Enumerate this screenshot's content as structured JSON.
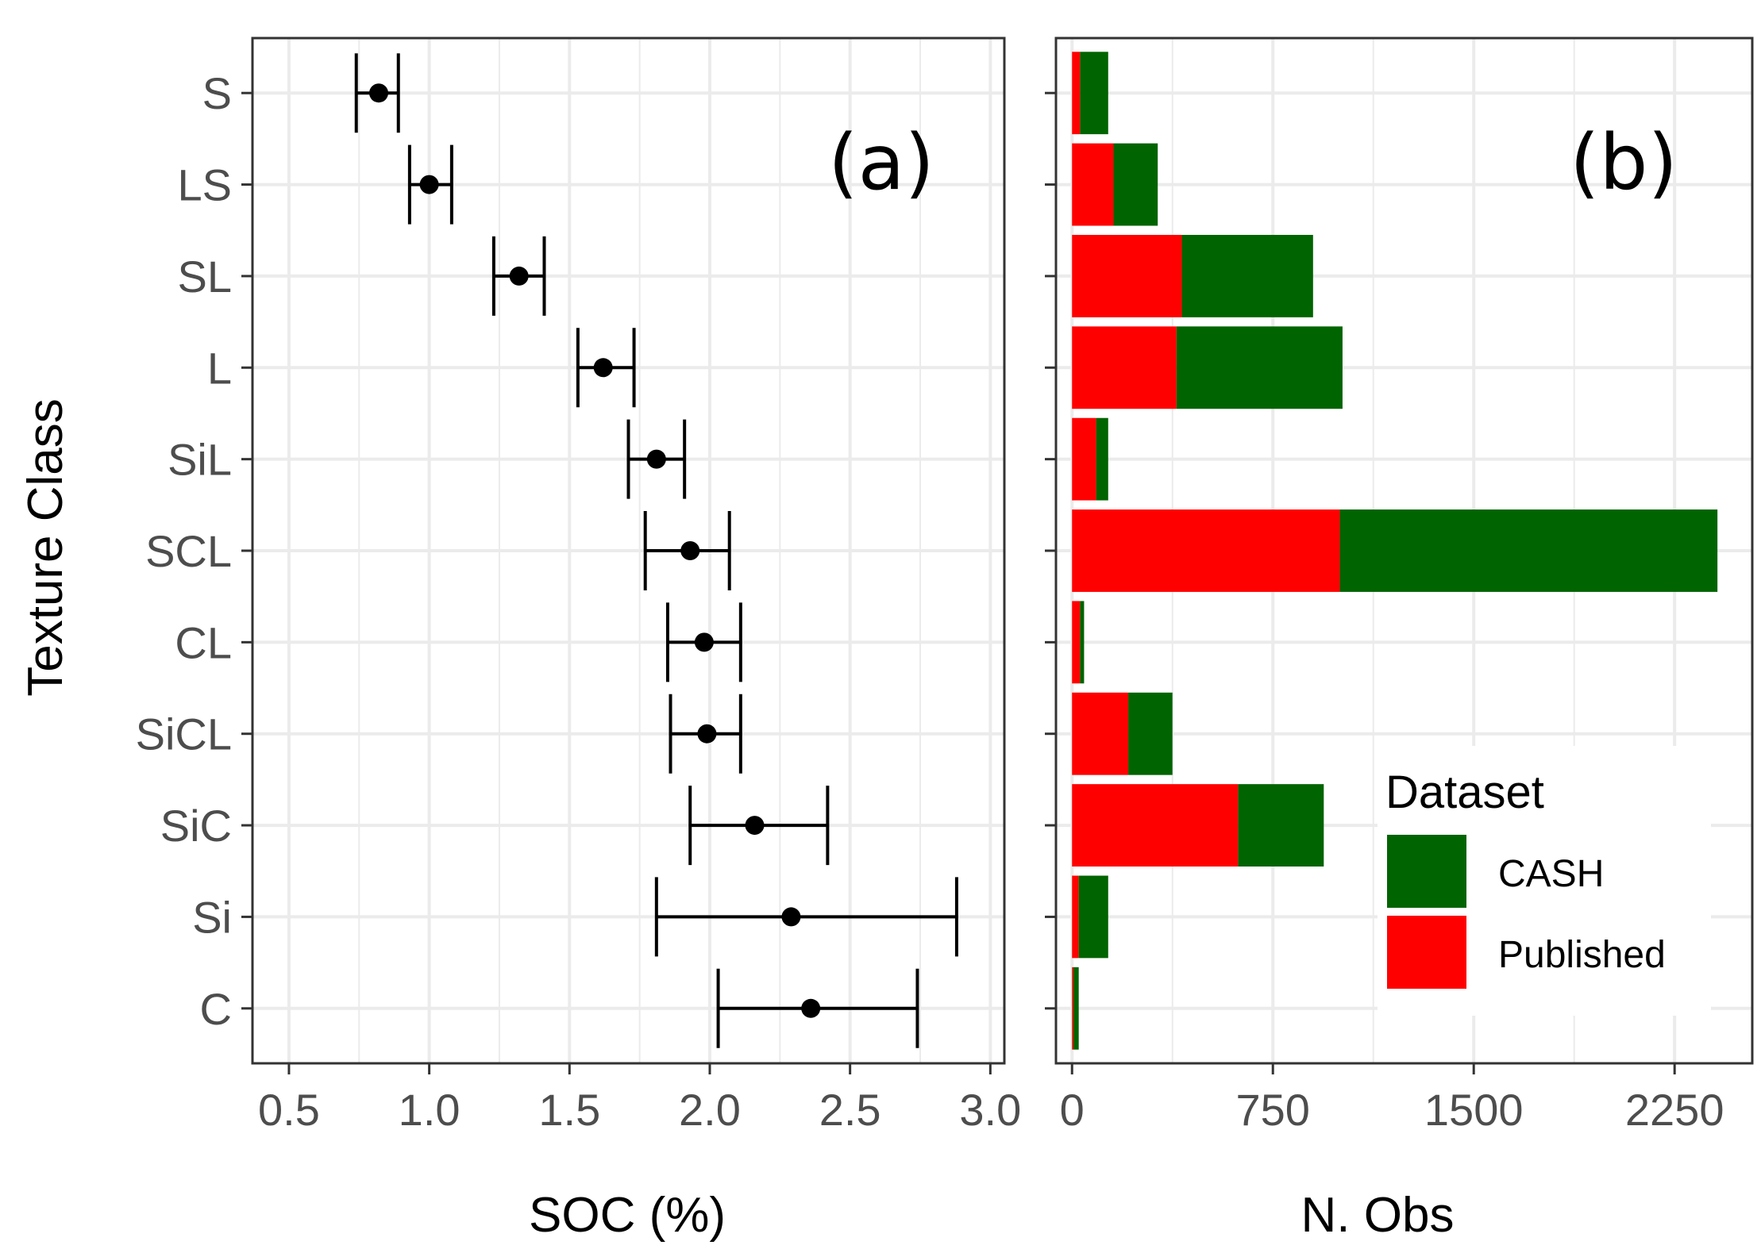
{
  "chart_data": [
    {
      "panel": "a",
      "type": "errorbar",
      "panel_label": "(a)",
      "xlabel": "SOC (%)",
      "ylabel": "Texture Class",
      "xlim": [
        0.37,
        3.05
      ],
      "xticks": [
        0.5,
        1.0,
        1.5,
        2.0,
        2.5,
        3.0
      ],
      "xtick_labels": [
        "0.5",
        "1.0",
        "1.5",
        "2.0",
        "2.5",
        "3.0"
      ],
      "categories": [
        "S",
        "LS",
        "SL",
        "L",
        "SiL",
        "SCL",
        "CL",
        "SiCL",
        "SiC",
        "Si",
        "C"
      ],
      "values": [
        0.82,
        1.0,
        1.32,
        1.62,
        1.81,
        1.93,
        1.98,
        1.99,
        2.16,
        2.29,
        2.36
      ],
      "lower": [
        0.74,
        0.93,
        1.23,
        1.53,
        1.71,
        1.77,
        1.85,
        1.86,
        1.93,
        1.81,
        2.03
      ],
      "upper": [
        0.89,
        1.08,
        1.41,
        1.73,
        1.91,
        2.07,
        2.11,
        2.11,
        2.42,
        2.88,
        2.74
      ],
      "grid": true
    },
    {
      "panel": "b",
      "type": "stacked-barh",
      "panel_label": "(b)",
      "xlabel": "N. Obs",
      "xlim": [
        -60,
        2540
      ],
      "xticks": [
        0,
        750,
        1500,
        2250
      ],
      "xtick_labels": [
        "0",
        "750",
        "1500",
        "2250"
      ],
      "categories": [
        "S",
        "LS",
        "SL",
        "L",
        "SiL",
        "SCL",
        "CL",
        "SiCL",
        "SiC",
        "Si",
        "C"
      ],
      "series": [
        {
          "name": "Published",
          "color": "#ff0000",
          "values": [
            30,
            155,
            410,
            390,
            90,
            1000,
            30,
            210,
            620,
            25,
            5
          ]
        },
        {
          "name": "CASH",
          "color": "#006400",
          "values": [
            105,
            165,
            490,
            620,
            45,
            1410,
            15,
            165,
            320,
            110,
            20
          ]
        }
      ],
      "legend": {
        "title": "Dataset",
        "position": "bottom-right",
        "entries": [
          "CASH",
          "Published"
        ]
      },
      "grid": true
    }
  ]
}
